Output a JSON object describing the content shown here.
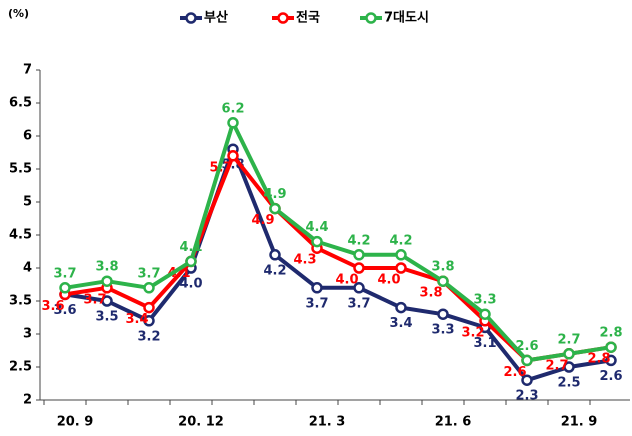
{
  "chart_data": {
    "type": "line",
    "y_label": "(%)",
    "categories": [
      "20. 9",
      null,
      null,
      "20. 12",
      null,
      null,
      "21. 3",
      null,
      null,
      "21. 6",
      null,
      null,
      "21. 9",
      null
    ],
    "series": [
      {
        "name": "부산",
        "color": "#1f2a6e",
        "values": [
          3.6,
          3.5,
          3.2,
          4.0,
          5.8,
          4.2,
          3.7,
          3.7,
          3.4,
          3.3,
          3.1,
          2.3,
          2.5,
          2.6
        ],
        "value_labels": [
          "3.6",
          "3.5",
          "3.2",
          "4.0",
          "5.8",
          "4.2",
          "3.7",
          "3.7",
          "3.4",
          "3.3",
          "3.1",
          "2.3",
          "2.5",
          "2.6"
        ]
      },
      {
        "name": "전국",
        "color": "#ff0000",
        "values": [
          3.6,
          3.7,
          3.4,
          4.1,
          5.7,
          4.9,
          4.3,
          4.0,
          4.0,
          3.8,
          3.2,
          2.6,
          2.7,
          2.8
        ],
        "value_labels": [
          "3.6",
          "3.7",
          "3.4",
          "4.1",
          "5.7",
          "4.9",
          "4.3",
          "4.0",
          "4.0",
          "3.8",
          "3.2",
          "2.6",
          "2.7",
          "2.8"
        ]
      },
      {
        "name": "7대도시",
        "color": "#2db34a",
        "values": [
          3.7,
          3.8,
          3.7,
          4.1,
          6.2,
          4.9,
          4.4,
          4.2,
          4.2,
          3.8,
          3.3,
          2.6,
          2.7,
          2.8
        ],
        "value_labels": [
          "3.7",
          "3.8",
          "3.7",
          "4.1",
          "6.2",
          "4.9",
          "4.4",
          "4.2",
          "4.2",
          "3.8",
          "3.3",
          "2.6",
          "2.7",
          "2.8"
        ]
      }
    ],
    "ylim": [
      2,
      7
    ],
    "yticks": [
      2,
      2.5,
      3,
      3.5,
      4,
      4.5,
      5,
      5.5,
      6,
      6.5,
      7
    ],
    "grid": false
  }
}
